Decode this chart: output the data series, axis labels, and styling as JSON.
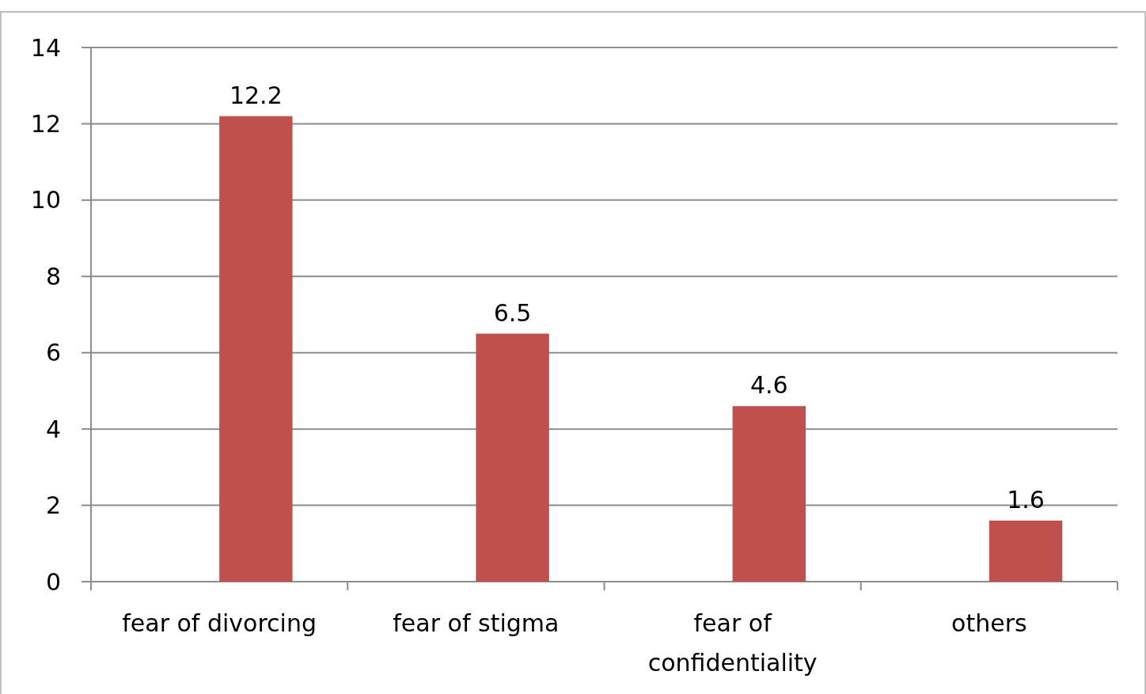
{
  "chart_data": {
    "type": "bar",
    "categories": [
      "fear of divorcing",
      "fear of stigma",
      "fear of confidentiality",
      "others"
    ],
    "values": [
      12.2,
      6.5,
      4.6,
      1.6
    ],
    "color": "#c0504d",
    "ylim": [
      0,
      14
    ],
    "yticks": [
      0,
      2,
      4,
      6,
      8,
      10,
      12,
      14
    ],
    "grid": "y",
    "data_labels": true
  }
}
